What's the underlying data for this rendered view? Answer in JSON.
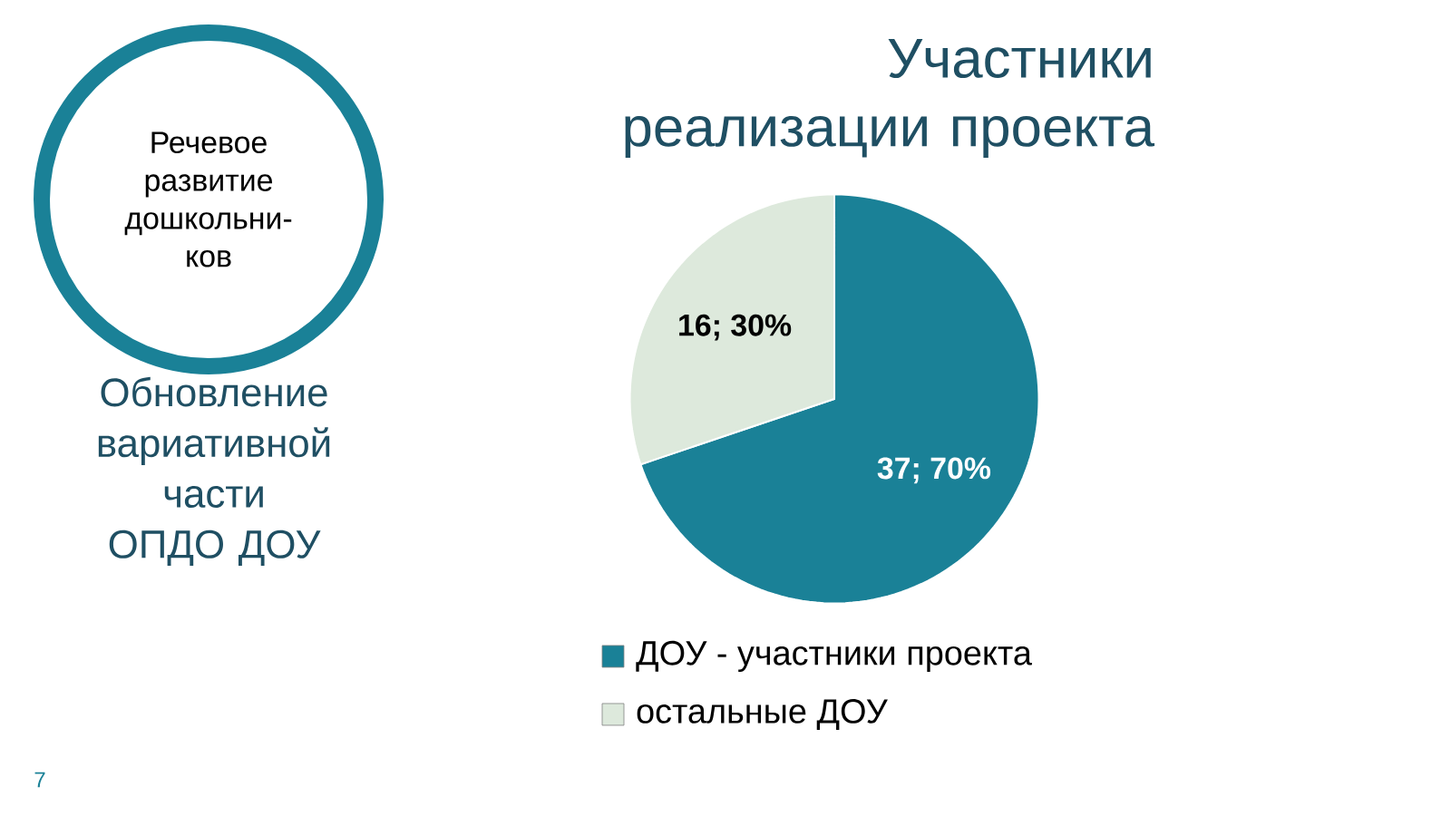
{
  "chart_data": {
    "type": "pie",
    "title": "Участники реализации проекта",
    "categories": [
      "ДОУ - участники проекта",
      "остальные ДОУ"
    ],
    "values": [
      37,
      16
    ],
    "colors": [
      "#1a8197",
      "#dde9dc"
    ],
    "value_labels": [
      "37; 70%",
      "16; 30%"
    ],
    "legend": "bottom",
    "annotations": [
      "Речевое развитие дошкольни-ков",
      "Обновление вариативной части ОПДО ДОУ",
      "7"
    ]
  }
}
